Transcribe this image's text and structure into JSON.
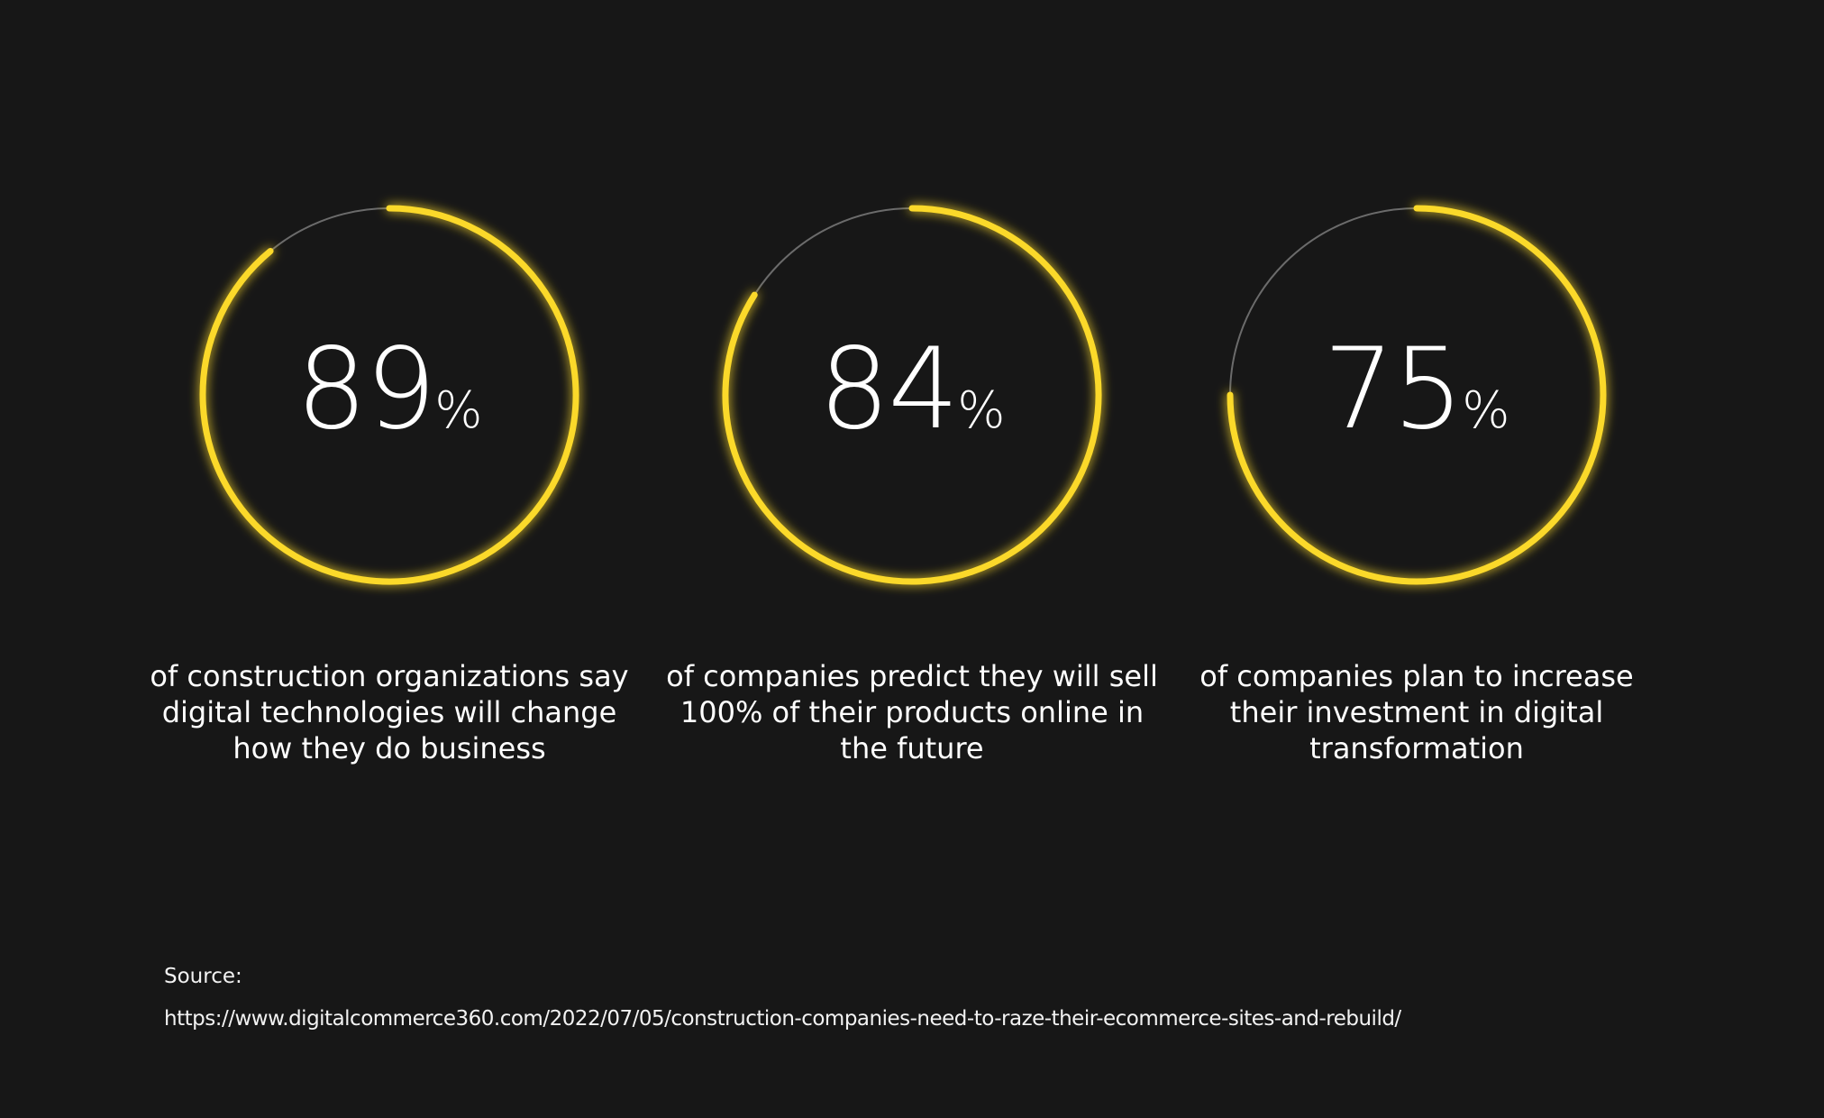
{
  "colors": {
    "background": "#171717",
    "accent": "#fbd92a",
    "track": "#6b6b6b",
    "text": "#ffffff"
  },
  "chart_data": [
    {
      "type": "radial-progress",
      "value": 89,
      "value_label": "89",
      "unit": "%",
      "caption": "of construction organizations say digital technologies will change how they do business"
    },
    {
      "type": "radial-progress",
      "value": 84,
      "value_label": "84",
      "unit": "%",
      "caption": "of companies predict they will sell 100% of their products online in the future"
    },
    {
      "type": "radial-progress",
      "value": 75,
      "value_label": "75",
      "unit": "%",
      "caption": "of companies plan to increase their investment in digital transformation"
    }
  ],
  "source": {
    "label": "Source:",
    "url": "https://www.digitalcommerce360.com/2022/07/05/construction-companies-need-to-raze-their-ecommerce-sites-and-rebuild/"
  }
}
